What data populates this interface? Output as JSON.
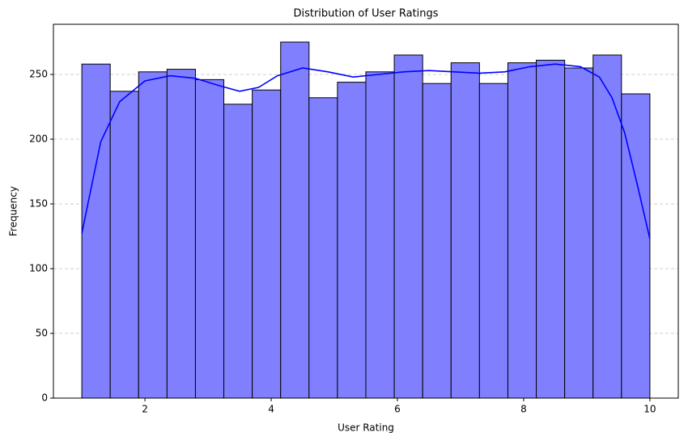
{
  "chart_data": {
    "type": "histogram",
    "title": "Distribution of User Ratings",
    "xlabel": "User Rating",
    "ylabel": "Frequency",
    "bins": [
      1,
      1.45,
      1.9,
      2.35,
      2.8,
      3.25,
      3.7,
      4.15,
      4.6,
      5.05,
      5.5,
      5.95,
      6.4,
      6.85,
      7.3,
      7.75,
      8.2,
      8.65,
      9.1,
      9.55,
      10
    ],
    "values": [
      258,
      237,
      252,
      254,
      246,
      227,
      238,
      275,
      232,
      244,
      252,
      265,
      243,
      259,
      243,
      259,
      261,
      255,
      265,
      235
    ],
    "color": "#8080ff",
    "edgecolor": "#000000",
    "kde": {
      "color": "#0000ff",
      "x": [
        1,
        1.1,
        1.3,
        1.6,
        2,
        2.4,
        2.8,
        3.2,
        3.5,
        3.8,
        4.1,
        4.5,
        4.9,
        5.3,
        5.7,
        6.1,
        6.5,
        6.9,
        7.3,
        7.7,
        8.1,
        8.5,
        8.9,
        9.2,
        9.4,
        9.6,
        9.8,
        10
      ],
      "values": [
        127,
        151,
        198,
        229,
        245,
        249,
        247,
        241,
        237,
        240,
        249,
        255,
        252,
        248,
        250,
        252,
        253,
        252,
        251,
        252,
        256,
        258,
        256,
        248,
        232,
        205,
        165,
        123
      ]
    },
    "xlim": [
      0.55,
      10.45
    ],
    "ylim": [
      0,
      288.75
    ],
    "xticks": [
      2,
      4,
      6,
      8,
      10
    ],
    "yticks": [
      0,
      50,
      100,
      150,
      200,
      250
    ],
    "grid": true
  }
}
